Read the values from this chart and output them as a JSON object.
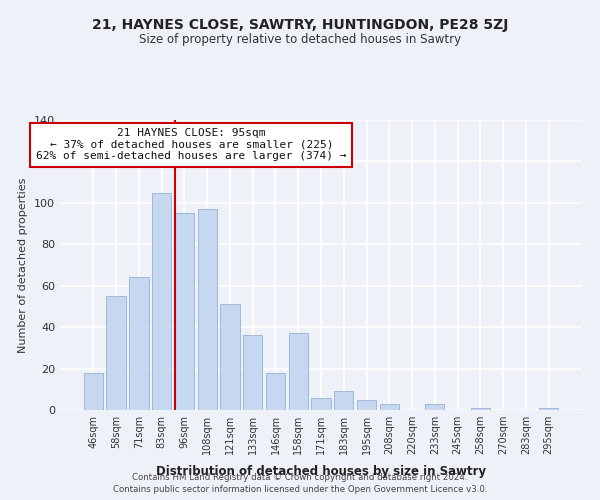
{
  "title1": "21, HAYNES CLOSE, SAWTRY, HUNTINGDON, PE28 5ZJ",
  "title2": "Size of property relative to detached houses in Sawtry",
  "xlabel": "Distribution of detached houses by size in Sawtry",
  "ylabel": "Number of detached properties",
  "categories": [
    "46sqm",
    "58sqm",
    "71sqm",
    "83sqm",
    "96sqm",
    "108sqm",
    "121sqm",
    "133sqm",
    "146sqm",
    "158sqm",
    "171sqm",
    "183sqm",
    "195sqm",
    "208sqm",
    "220sqm",
    "233sqm",
    "245sqm",
    "258sqm",
    "270sqm",
    "283sqm",
    "295sqm"
  ],
  "values": [
    18,
    55,
    64,
    105,
    95,
    97,
    51,
    36,
    18,
    37,
    6,
    9,
    5,
    3,
    0,
    3,
    0,
    1,
    0,
    0,
    1
  ],
  "bar_color": "#c5d8f0",
  "bar_edge_color": "#a0b8d8",
  "vline_color": "#cc0000",
  "annotation_title": "21 HAYNES CLOSE: 95sqm",
  "annotation_line1": "← 37% of detached houses are smaller (225)",
  "annotation_line2": "62% of semi-detached houses are larger (374) →",
  "annotation_box_color": "#ffffff",
  "annotation_box_edge": "#cc0000",
  "ylim": [
    0,
    140
  ],
  "footer1": "Contains HM Land Registry data © Crown copyright and database right 2024.",
  "footer2": "Contains public sector information licensed under the Open Government Licence v3.0.",
  "background_color": "#eef2f8"
}
